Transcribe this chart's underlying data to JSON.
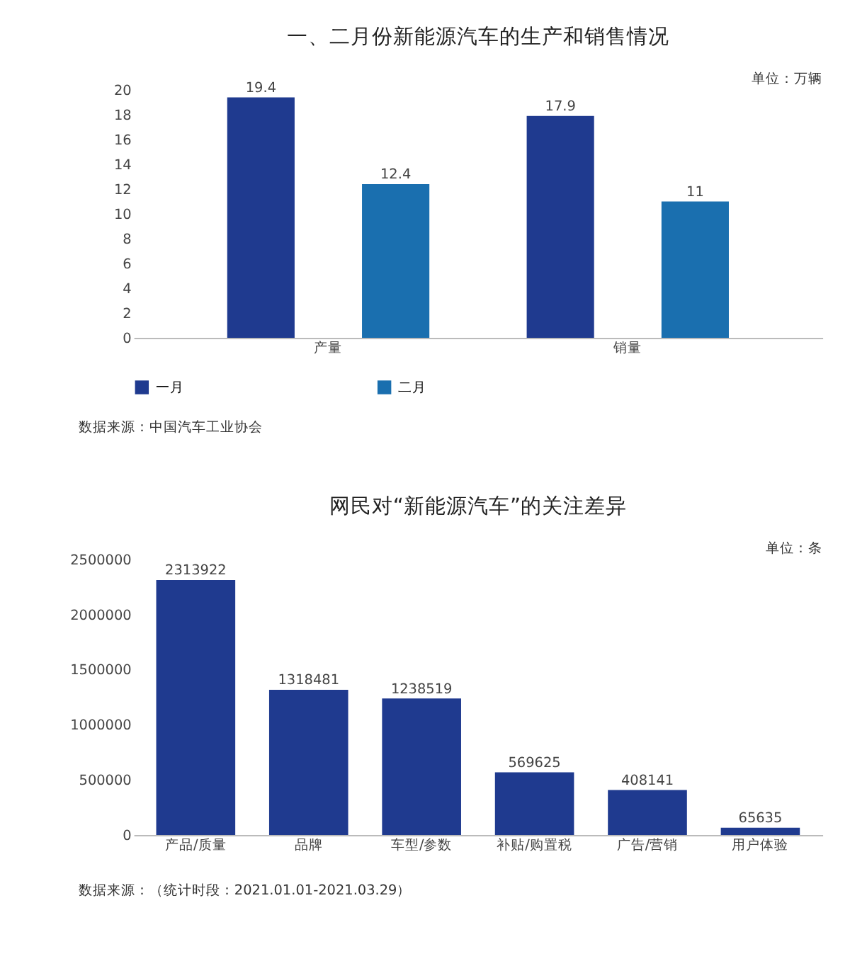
{
  "chart_data": [
    {
      "type": "bar",
      "title": "一、二月份新能源汽车的生产和销售情况",
      "categories": [
        "产量",
        "销量"
      ],
      "series": [
        {
          "name": "一月",
          "color": "#1f3a8f",
          "values": [
            19.4,
            17.9
          ]
        },
        {
          "name": "二月",
          "color": "#1a6faf",
          "values": [
            12.4,
            11
          ]
        }
      ],
      "ylim": [
        0,
        20
      ],
      "yticks": [
        0,
        2,
        4,
        6,
        8,
        10,
        12,
        14,
        16,
        18,
        20
      ],
      "data_labels": true,
      "legend": "bottom",
      "annotations": [
        "单位：万辆",
        "数据来源：中国汽车工业协会"
      ]
    },
    {
      "type": "bar",
      "title": "网民对“新能源汽车”的关注差异",
      "categories": [
        "产品/质量",
        "品牌",
        "车型/参数",
        "补贴/购置税",
        "广告/营销",
        "用户体验"
      ],
      "color": "#1f3a8f",
      "values": [
        2313922,
        1318481,
        1238519,
        569625,
        408141,
        65635
      ],
      "ylim": [
        0,
        2500000
      ],
      "yticks": [
        0,
        500000,
        1000000,
        1500000,
        2000000,
        2500000
      ],
      "data_labels": true,
      "annotations": [
        "单位：条",
        "数据来源：（统计时段：2021.01.01-2021.03.29）"
      ]
    }
  ]
}
